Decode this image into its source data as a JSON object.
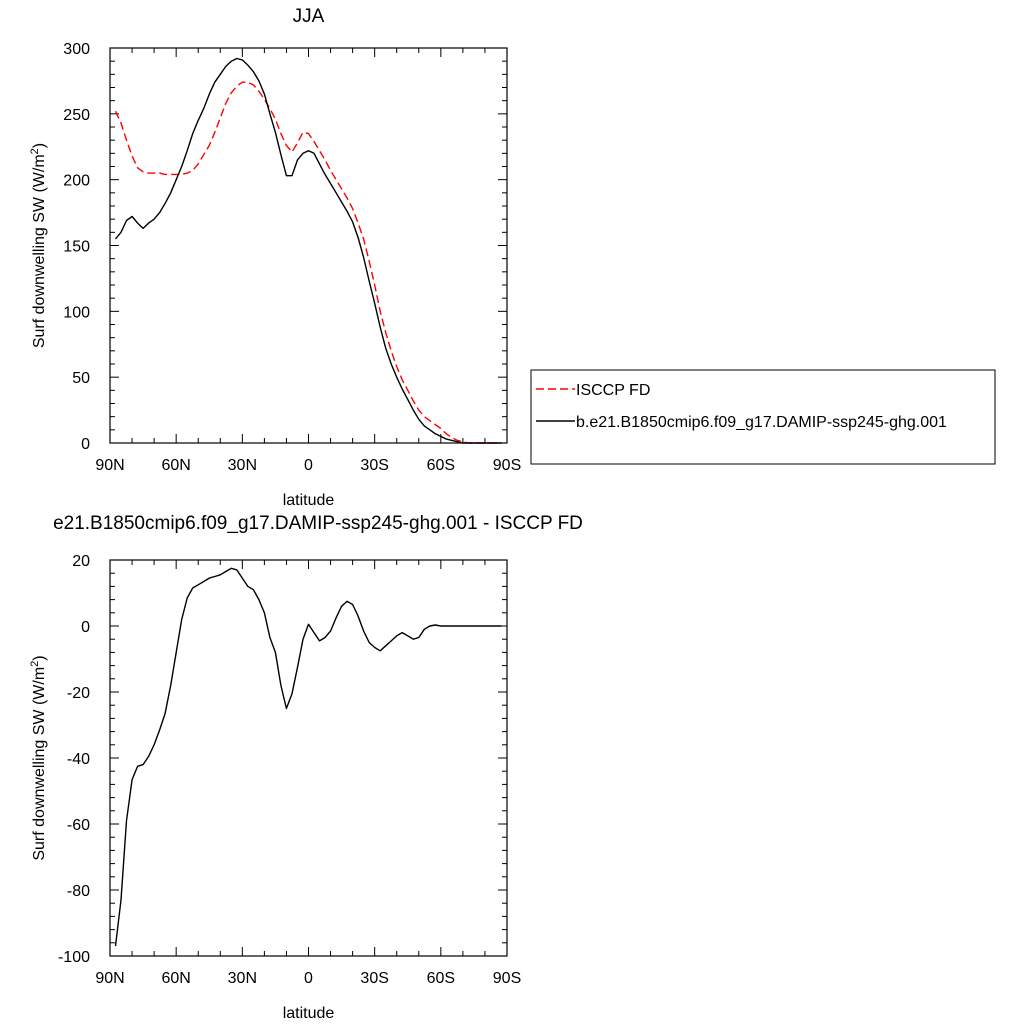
{
  "chart_data": [
    {
      "type": "line",
      "title": "JJA",
      "xlabel": "latitude",
      "ylabel": "Surf downwelling SW (W/m",
      "ylabel_sup": "2",
      "ylabel_end": ")",
      "xlim": [
        90,
        -90
      ],
      "ylim": [
        0,
        300
      ],
      "xticks": [
        90,
        60,
        30,
        0,
        -30,
        -60,
        -90
      ],
      "xtick_labels": [
        "90N",
        "60N",
        "30N",
        "0",
        "30S",
        "60S",
        "90S"
      ],
      "yticks": [
        0,
        50,
        100,
        150,
        200,
        250,
        300
      ],
      "ytick_labels": [
        "0",
        "50",
        "100",
        "150",
        "200",
        "250",
        "300"
      ],
      "legend_position": "right",
      "series": [
        {
          "name": "ISCCP FD",
          "color": "#ff0000",
          "dash": "dashed",
          "x": [
            87.5,
            85,
            82.5,
            80,
            77.5,
            75,
            72.5,
            70,
            67.5,
            65,
            62.5,
            60,
            57.5,
            55,
            52.5,
            50,
            47.5,
            45,
            42.5,
            40,
            37.5,
            35,
            32.5,
            30,
            27.5,
            25,
            22.5,
            20,
            17.5,
            15,
            12.5,
            10,
            7.5,
            5,
            2.5,
            0,
            -2.5,
            -5,
            -7.5,
            -10,
            -12.5,
            -15,
            -17.5,
            -20,
            -22.5,
            -25,
            -27.5,
            -30,
            -32.5,
            -35,
            -37.5,
            -40,
            -42.5,
            -45,
            -47.5,
            -50,
            -52.5,
            -55,
            -57.5,
            -60,
            -62.5,
            -65,
            -67.5,
            -70,
            -72.5,
            -75,
            -77.5,
            -80,
            -82.5,
            -85,
            -87.5
          ],
          "values": [
            252,
            243,
            230,
            218,
            209,
            206,
            205,
            205,
            205,
            204,
            204,
            204,
            204,
            205,
            207,
            212,
            219,
            226,
            236,
            247,
            258,
            266,
            271,
            274,
            274,
            272,
            267,
            261,
            254,
            246,
            235,
            226,
            221,
            228,
            236,
            235,
            229,
            222,
            215,
            207,
            200,
            193,
            186,
            178,
            167,
            155,
            138,
            120,
            100,
            84,
            70,
            58,
            48,
            40,
            32,
            25,
            20,
            17,
            14,
            11,
            7,
            4,
            2,
            1,
            0,
            0,
            0,
            0,
            0,
            0,
            0
          ]
        },
        {
          "name": "b.e21.B1850cmip6.f09_g17.DAMIP-ssp245-ghg.001",
          "color": "#000000",
          "dash": "solid",
          "x": [
            87.5,
            85,
            82.5,
            80,
            77.5,
            75,
            72.5,
            70,
            67.5,
            65,
            62.5,
            60,
            57.5,
            55,
            52.5,
            50,
            47.5,
            45,
            42.5,
            40,
            37.5,
            35,
            32.5,
            30,
            27.5,
            25,
            22.5,
            20,
            17.5,
            15,
            12.5,
            10,
            7.5,
            5,
            2.5,
            0,
            -2.5,
            -5,
            -7.5,
            -10,
            -12.5,
            -15,
            -17.5,
            -20,
            -22.5,
            -25,
            -27.5,
            -30,
            -32.5,
            -35,
            -37.5,
            -40,
            -42.5,
            -45,
            -47.5,
            -50,
            -52.5,
            -55,
            -57.5,
            -60,
            -62.5,
            -65,
            -67.5,
            -70,
            -72.5,
            -75,
            -77.5,
            -80,
            -82.5,
            -85,
            -87.5
          ],
          "values": [
            155,
            160,
            169,
            172,
            167,
            163,
            167,
            170,
            175,
            182,
            190,
            200,
            210,
            222,
            235,
            245,
            254,
            265,
            274,
            280,
            286,
            290,
            292,
            291,
            287,
            282,
            275,
            265,
            250,
            236,
            219,
            203,
            203,
            215,
            220,
            222,
            220,
            212,
            204,
            197,
            190,
            183,
            176,
            168,
            156,
            141,
            123,
            106,
            88,
            72,
            60,
            50,
            41,
            33,
            25,
            18,
            13,
            10,
            7,
            5,
            3,
            2,
            1,
            0,
            0,
            0,
            0,
            0,
            0,
            0,
            0
          ]
        }
      ]
    },
    {
      "type": "line",
      "title": "e21.B1850cmip6.f09_g17.DAMIP-ssp245-ghg.001 - ISCCP FD",
      "xlabel": "latitude",
      "ylabel": "Surf downwelling SW (W/m",
      "ylabel_sup": "2",
      "ylabel_end": ")",
      "xlim": [
        90,
        -90
      ],
      "ylim": [
        -100,
        20
      ],
      "xticks": [
        90,
        60,
        30,
        0,
        -30,
        -60,
        -90
      ],
      "xtick_labels": [
        "90N",
        "60N",
        "30N",
        "0",
        "30S",
        "60S",
        "90S"
      ],
      "yticks": [
        -100,
        -80,
        -60,
        -40,
        -20,
        0,
        20
      ],
      "ytick_labels": [
        "-100",
        "-80",
        "-60",
        "-40",
        "-20",
        "0",
        "20"
      ],
      "series": [
        {
          "color": "#000000",
          "dash": "solid",
          "x": [
            87.5,
            85,
            82.5,
            80,
            77.5,
            75,
            72.5,
            70,
            67.5,
            65,
            62.5,
            60,
            57.5,
            55,
            52.5,
            50,
            47.5,
            45,
            42.5,
            40,
            37.5,
            35,
            32.5,
            30,
            27.5,
            25,
            22.5,
            20,
            17.5,
            15,
            12.5,
            10,
            7.5,
            5,
            2.5,
            0,
            -2.5,
            -5,
            -7.5,
            -10,
            -12.5,
            -15,
            -17.5,
            -20,
            -22.5,
            -25,
            -27.5,
            -30,
            -32.5,
            -35,
            -37.5,
            -40,
            -42.5,
            -45,
            -47.5,
            -50,
            -52.5,
            -55,
            -57.5,
            -60,
            -62.5,
            -65,
            -67.5,
            -70,
            -72.5,
            -75,
            -77.5,
            -80,
            -82.5,
            -85,
            -87.5
          ],
          "values": [
            -97,
            -83,
            -59,
            -46.5,
            -42.5,
            -42,
            -39.5,
            -36,
            -31.5,
            -26.5,
            -18,
            -8,
            2,
            8.5,
            11.5,
            12.5,
            13.5,
            14.5,
            15,
            15.5,
            16.5,
            17.5,
            17,
            14.5,
            12,
            11,
            8,
            4,
            -3.5,
            -8,
            -18,
            -25,
            -20.5,
            -12.5,
            -4,
            0.5,
            -2,
            -4.5,
            -3.5,
            -1.5,
            2.5,
            6,
            7.5,
            6.5,
            3,
            -1.5,
            -5,
            -6.5,
            -7.5,
            -6,
            -4.5,
            -3,
            -2,
            -3,
            -4,
            -3.5,
            -1,
            0,
            0.3,
            0,
            0,
            0,
            0,
            0,
            0,
            0,
            0,
            0,
            0,
            0,
            0
          ]
        }
      ]
    }
  ]
}
